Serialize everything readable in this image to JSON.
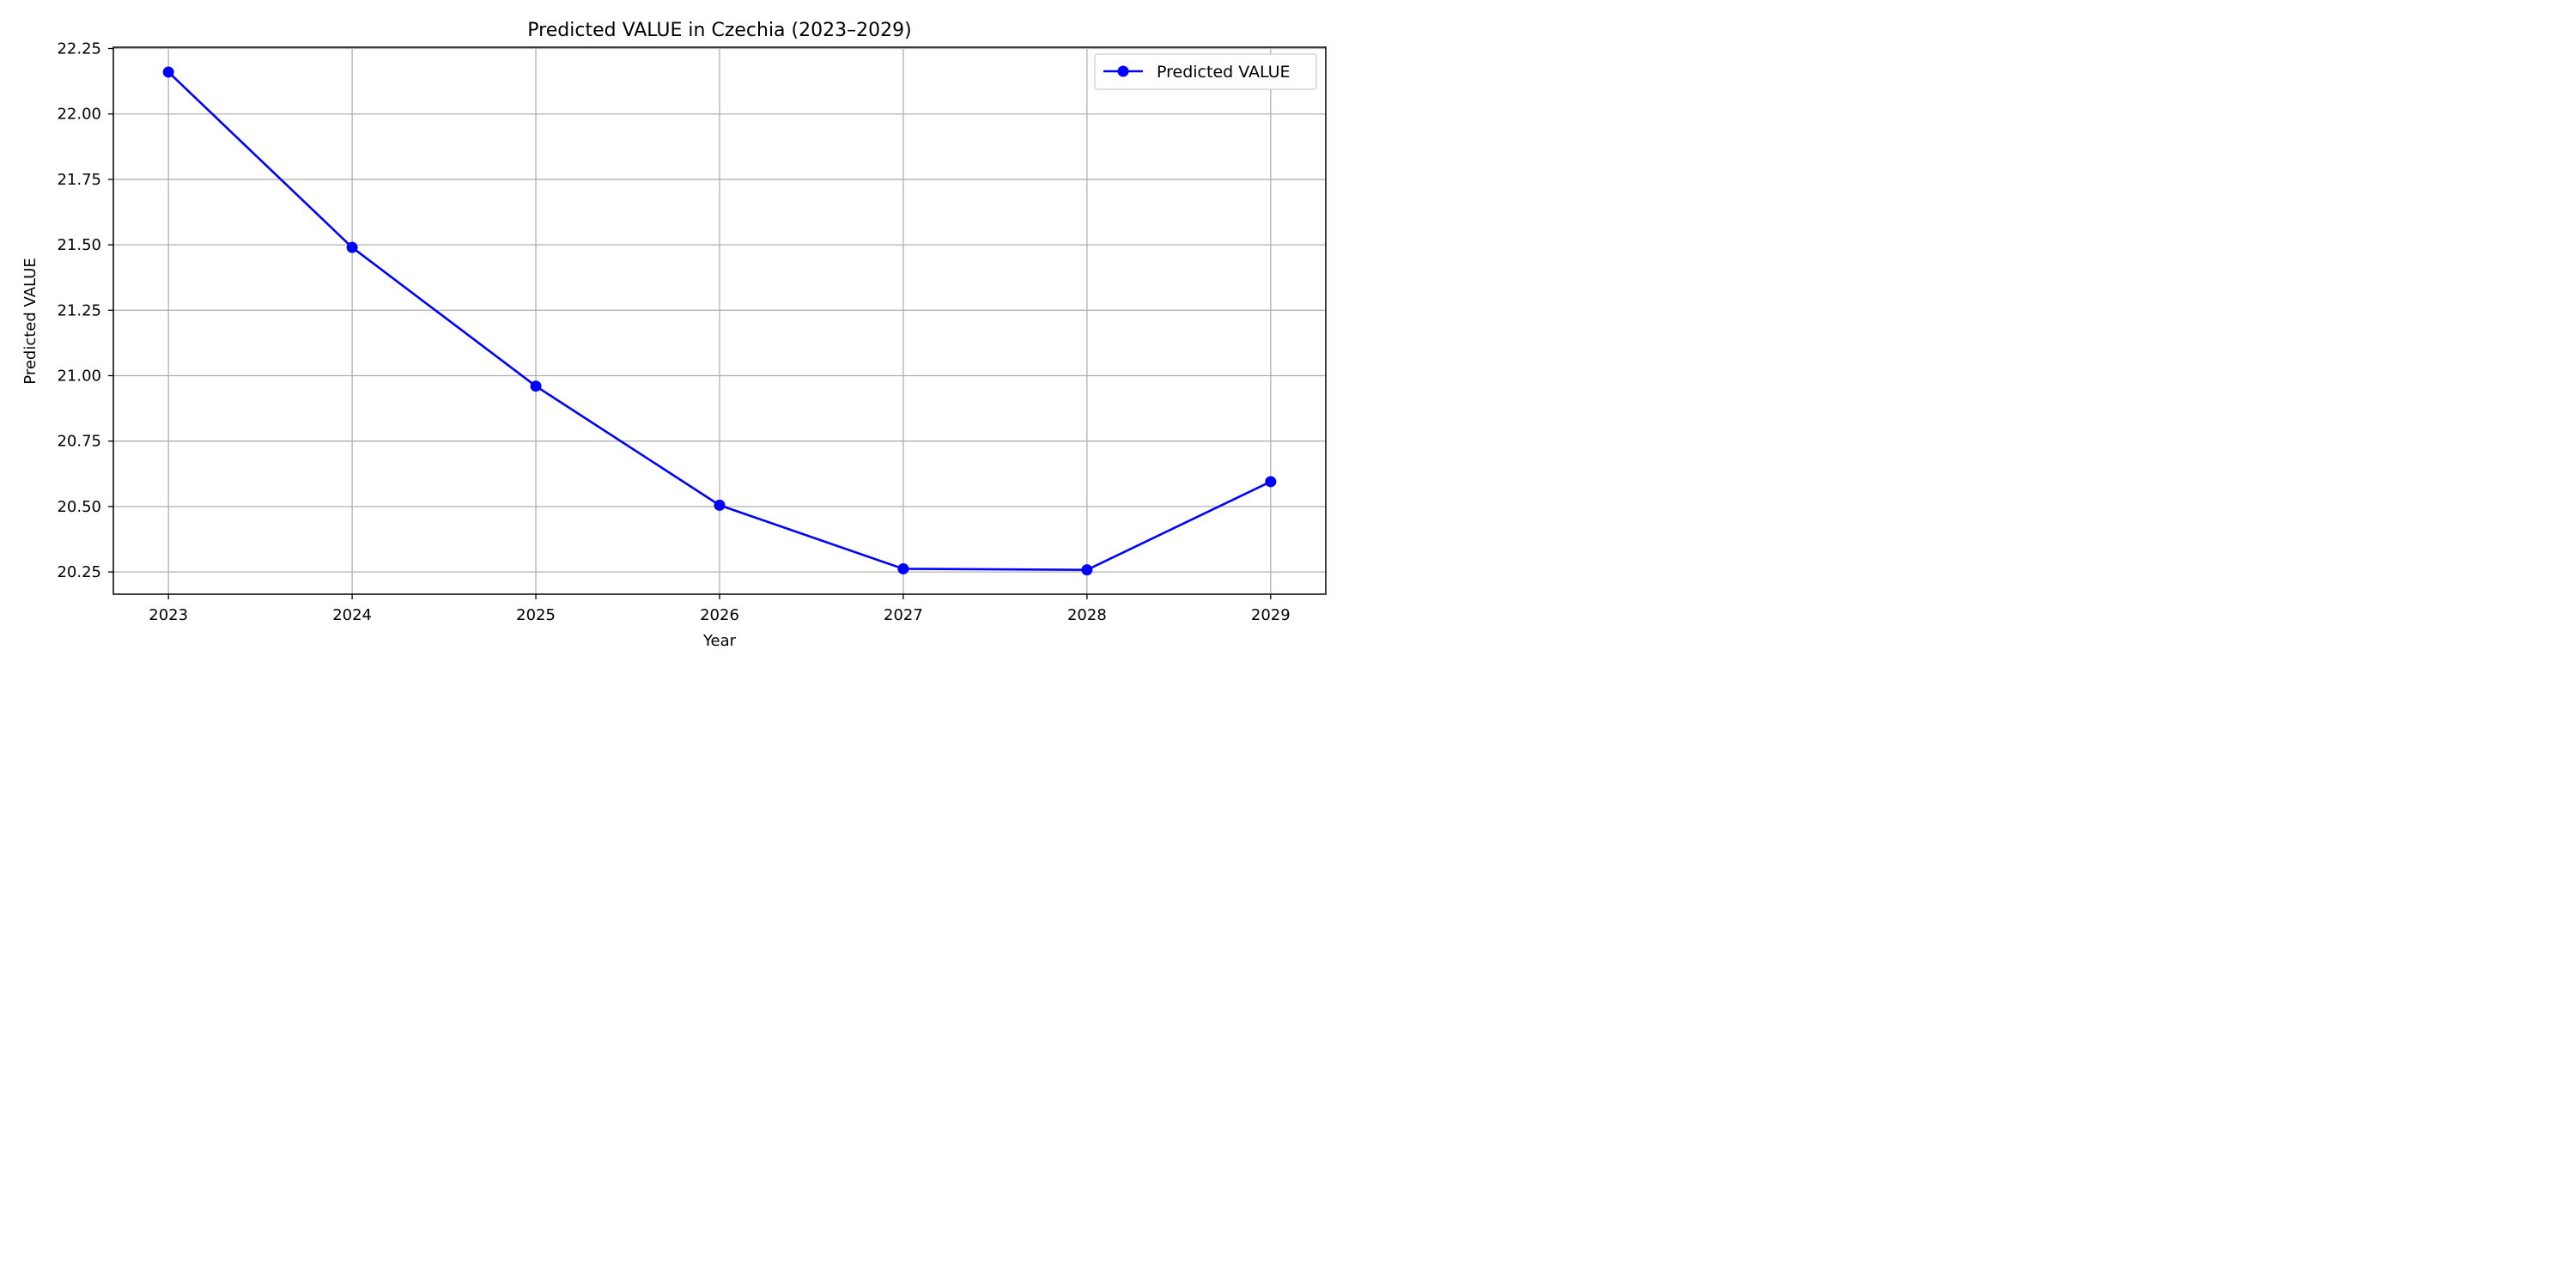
{
  "chart_data": {
    "type": "line",
    "title": "Predicted VALUE in Czechia (2023–2029)",
    "xlabel": "Year",
    "ylabel": "Predicted VALUE",
    "x": [
      2023,
      2024,
      2025,
      2026,
      2027,
      2028,
      2029
    ],
    "x_tick_labels": [
      "2023",
      "2024",
      "2025",
      "2026",
      "2027",
      "2028",
      "2029"
    ],
    "y_ticks": [
      20.25,
      20.5,
      20.75,
      21.0,
      21.25,
      21.5,
      21.75,
      22.0,
      22.25
    ],
    "y_tick_labels": [
      "20.25",
      "20.50",
      "20.75",
      "21.00",
      "21.25",
      "21.50",
      "21.75",
      "22.00",
      "22.25"
    ],
    "ylim": [
      20.165,
      22.255
    ],
    "xlim": [
      2022.7,
      2029.3
    ],
    "grid": true,
    "legend_position": "top-right",
    "series": [
      {
        "name": "Predicted VALUE",
        "color": "#0000ff",
        "marker": "circle",
        "values": [
          22.16,
          21.49,
          20.96,
          20.505,
          20.262,
          20.258,
          20.595
        ]
      }
    ]
  }
}
